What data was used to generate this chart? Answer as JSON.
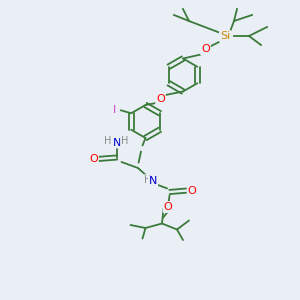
{
  "bg_color": "#eaeff5",
  "bond_color": "#3a7a3a",
  "atom_colors": {
    "O": "#ff0000",
    "N": "#0000cc",
    "Si": "#cc8800",
    "I": "#cc44cc",
    "H": "#888888",
    "C": "#3a7a3a"
  }
}
